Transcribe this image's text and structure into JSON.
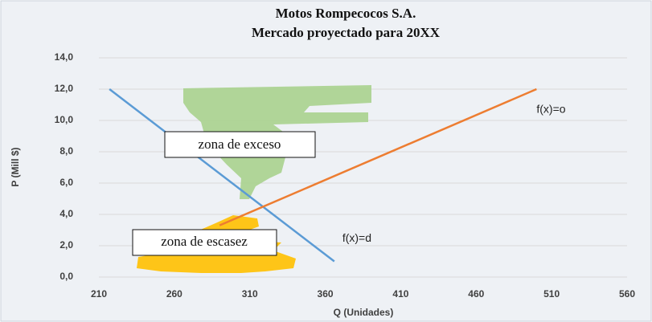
{
  "chart_data": {
    "type": "line",
    "title": "Motos Rompecocos S.A.",
    "subtitle": "Mercado proyectado para 20XX",
    "x_label": "Q (Unidades)",
    "y_label": "P (Mill $)",
    "series": [
      {
        "name": "f(x)=d",
        "color": "#5b9bd5",
        "x": [
          217,
          366
        ],
        "values": [
          12,
          1
        ]
      },
      {
        "name": "f(x)=o",
        "color": "#ed7d31",
        "x": [
          290,
          500
        ],
        "values": [
          3.3,
          12
        ]
      }
    ],
    "annotations": [
      "zona de exceso",
      "zona de escasez"
    ],
    "xlim": [
      210,
      560
    ],
    "xticks": [
      210,
      260,
      310,
      360,
      410,
      460,
      510,
      560
    ],
    "ylim": [
      0,
      14
    ],
    "yticks": [
      {
        "value": 0,
        "label": "0,0"
      },
      {
        "value": 2,
        "label": "2,0"
      },
      {
        "value": 4,
        "label": "4,0"
      },
      {
        "value": 6,
        "label": "6,0"
      },
      {
        "value": 8,
        "label": "8,0"
      },
      {
        "value": 10,
        "label": "10,0"
      },
      {
        "value": 12,
        "label": "12,0"
      },
      {
        "value": 14,
        "label": "14,0"
      }
    ],
    "grid": true
  }
}
